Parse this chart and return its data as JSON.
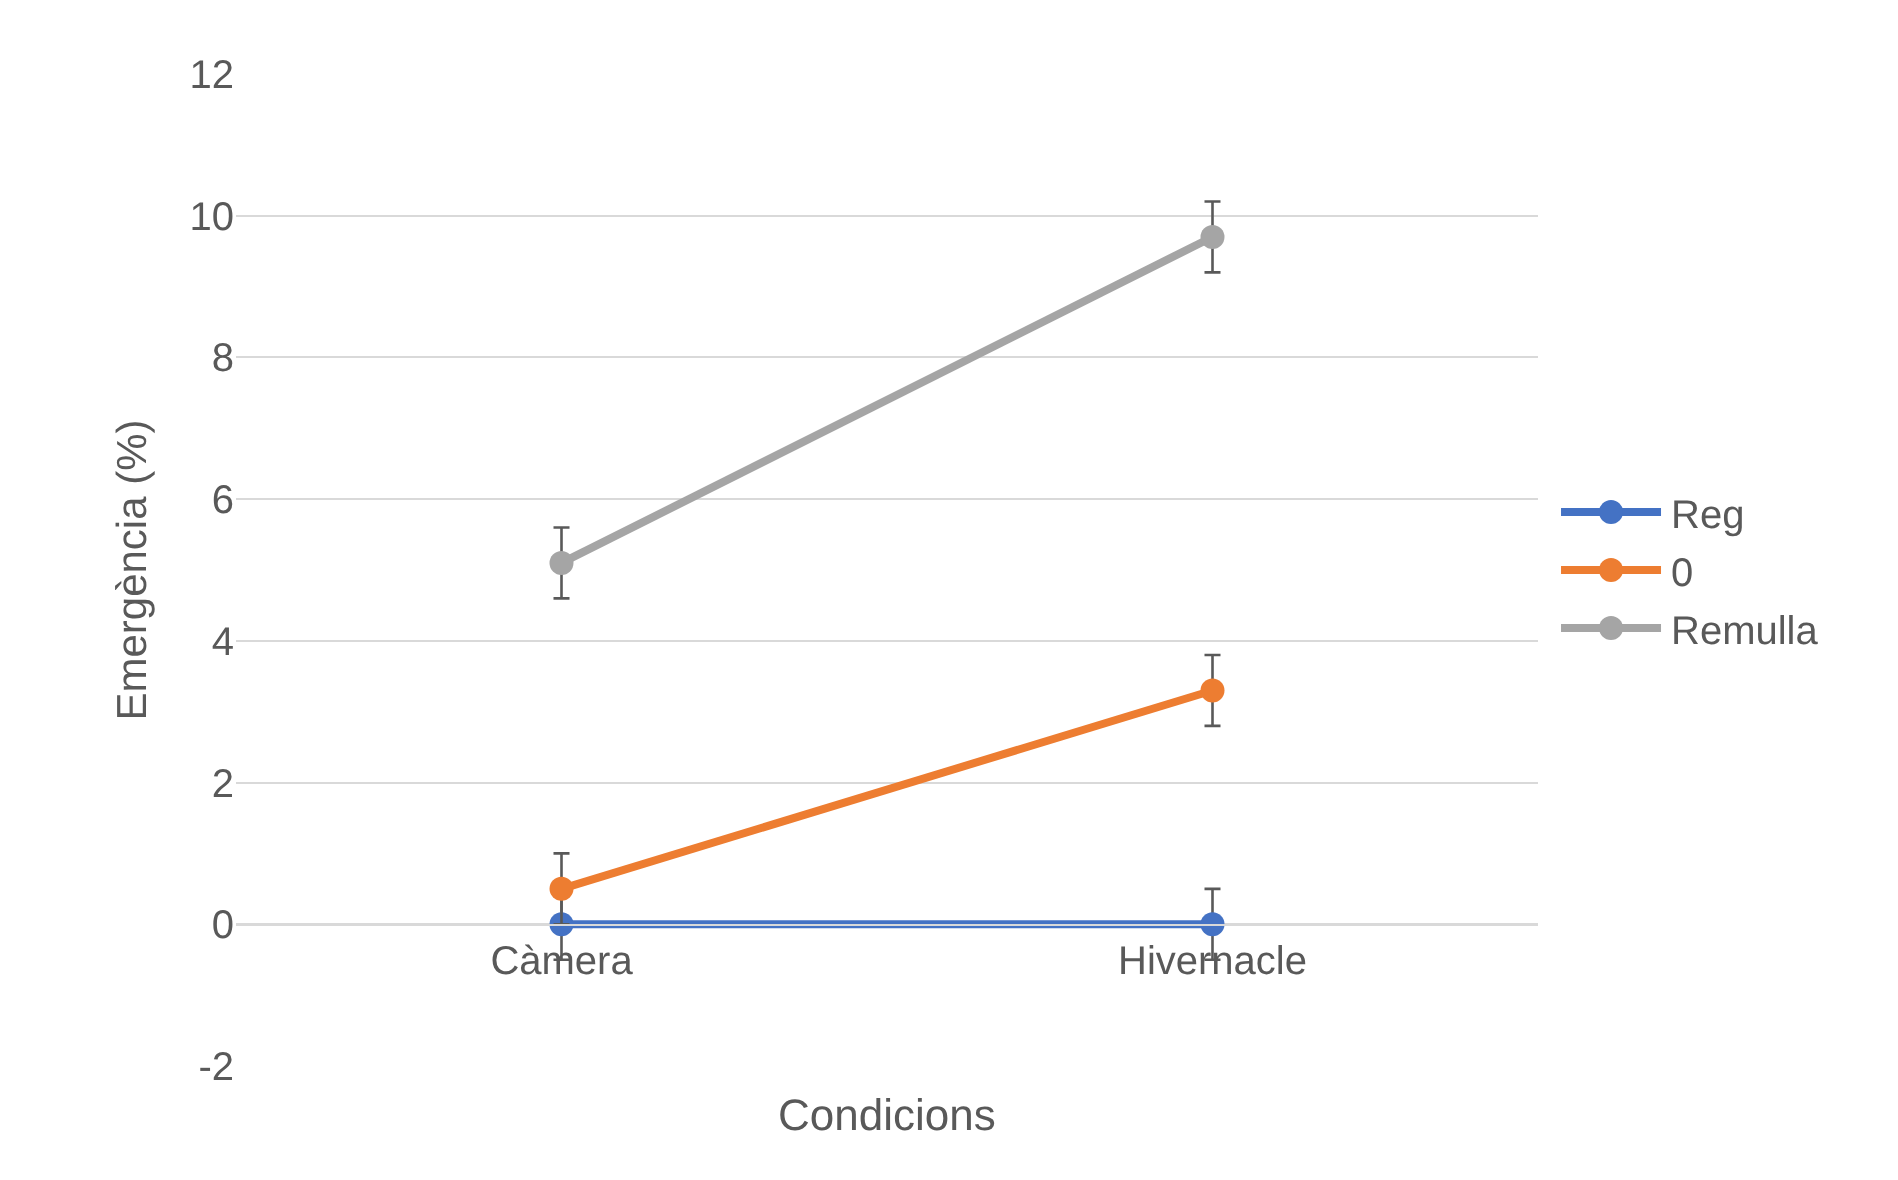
{
  "chart_data": {
    "type": "line",
    "xlabel": "Condicions",
    "ylabel": "Emergència (%)",
    "categories": [
      "Càmera",
      "Hivernacle"
    ],
    "series": [
      {
        "name": "Reg",
        "color": "#4472c4",
        "values": [
          0,
          0
        ],
        "errors": [
          0.5,
          0.5
        ]
      },
      {
        "name": "0",
        "color": "#ed7d31",
        "values": [
          0.5,
          3.3
        ],
        "errors": [
          0.5,
          0.5
        ]
      },
      {
        "name": "Remulla",
        "color": "#a5a5a5",
        "values": [
          5.1,
          9.7
        ],
        "errors": [
          0.5,
          0.5
        ]
      }
    ],
    "ylim": [
      -2,
      12
    ],
    "yticks": [
      -2,
      0,
      2,
      4,
      6,
      8,
      10,
      12
    ],
    "grid": "y",
    "legend": "right",
    "marker": "circle",
    "line_style": "solid"
  }
}
